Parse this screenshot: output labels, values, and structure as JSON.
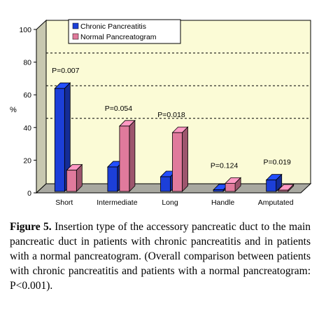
{
  "caption": {
    "label": "Figure 5.",
    "text": "Insertion type of the accessory pancreatic duct to the main pancreatic duct in patients with chronic pancreatitis and in patients with a normal pancreatogram. (Overall comparison between patients with chronic pancreatitis and patients with a normal pancreatogram: P<0.001)."
  },
  "chart_data": {
    "type": "bar",
    "ylabel": "%",
    "ylim": [
      0,
      100
    ],
    "yticks": [
      0,
      20,
      40,
      60,
      80,
      100
    ],
    "grid": "dashed horizontal at 40, 60, 80",
    "legend_position": "top-left",
    "categories": [
      "Short",
      "Intermediate",
      "Long",
      "Handle",
      "Amputated"
    ],
    "series": [
      {
        "name": "Chronic Pancreatitis",
        "color": "#1c3fd8",
        "values": [
          63,
          15,
          9,
          1,
          7
        ]
      },
      {
        "name": "Normal Pancreatogram",
        "color": "#e07a9c",
        "values": [
          13,
          40,
          36,
          5,
          0.8
        ]
      }
    ],
    "p_values": [
      "P=0.007",
      "P=0.054",
      "P=0.018",
      "P=0.124",
      "P=0.019"
    ],
    "colors": {
      "plot_back": "#fbfbd6",
      "plot_side": "#c8c8b0",
      "plot_floor": "#a8a8a0"
    }
  }
}
